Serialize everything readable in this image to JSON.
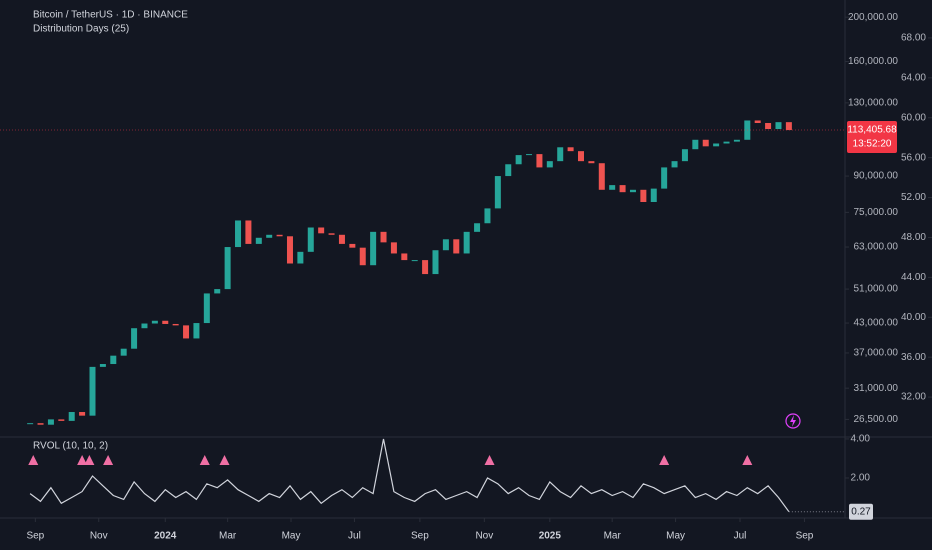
{
  "chart_data": {
    "type": "candlestick",
    "title": "Bitcoin / TetherUS · 1D · BINANCE",
    "subtitle": "Distribution Days (25)",
    "log_scale": true,
    "up_color": "#26a69a",
    "down_color": "#ef5350",
    "open": [
      25900,
      26000,
      25800,
      26500,
      26300,
      27500,
      27000,
      34500,
      35000,
      36500,
      37800,
      41900,
      42900,
      43500,
      42800,
      42500,
      39800,
      43000,
      49900,
      51000,
      63000,
      72000,
      64000,
      66000,
      67000,
      66500,
      58000,
      61500,
      69500,
      67500,
      67000,
      64000,
      62800,
      57500,
      68000,
      64500,
      61000,
      59000,
      59000,
      55000,
      62000,
      65500,
      61000,
      68000,
      71000,
      76500,
      90000,
      95500,
      100000,
      100500,
      94000,
      97000,
      104000,
      102000,
      97000,
      96000,
      84000,
      86000,
      83000,
      84000,
      79000,
      84500,
      94000,
      97000,
      103000,
      108000,
      104500,
      106000,
      107000,
      108000,
      119000,
      117500,
      114000,
      118000
    ],
    "close": [
      26000,
      25800,
      26500,
      26300,
      27500,
      27000,
      34500,
      35000,
      36500,
      37800,
      41900,
      42900,
      43500,
      42800,
      42500,
      39800,
      43000,
      49900,
      51000,
      63000,
      72000,
      64000,
      66000,
      67000,
      66500,
      58000,
      61500,
      69500,
      67500,
      67000,
      64000,
      62800,
      57500,
      68000,
      64500,
      61000,
      59000,
      59000,
      55000,
      62000,
      65500,
      61000,
      68000,
      71000,
      76500,
      90000,
      95500,
      100000,
      100500,
      94000,
      97000,
      104000,
      102000,
      97000,
      96000,
      84000,
      86000,
      83000,
      84000,
      79000,
      84500,
      94000,
      97000,
      103000,
      108000,
      104500,
      106000,
      107000,
      108000,
      119000,
      117500,
      114000,
      118000,
      113405.68
    ],
    "xlim": [
      -2.9,
      78.4
    ],
    "xticks": [
      {
        "value": 0.5,
        "label": "Sep"
      },
      {
        "value": 6.6,
        "label": "Nov"
      },
      {
        "value": 13.0,
        "label": "2024"
      },
      {
        "value": 19.0,
        "label": "Mar"
      },
      {
        "value": 25.1,
        "label": "May"
      },
      {
        "value": 31.2,
        "label": "Jul"
      },
      {
        "value": 37.5,
        "label": "Sep"
      },
      {
        "value": 43.7,
        "label": "Nov"
      },
      {
        "value": 50.0,
        "label": "2025"
      },
      {
        "value": 56.0,
        "label": "Mar"
      },
      {
        "value": 62.1,
        "label": "May"
      },
      {
        "value": 68.3,
        "label": "Jul"
      },
      {
        "value": 74.5,
        "label": "Sep"
      }
    ],
    "ylim": [
      24500,
      218000
    ],
    "yticks": [
      {
        "value": 200000,
        "label": "200,000.00"
      },
      {
        "value": 160000,
        "label": "160,000.00"
      },
      {
        "value": 130000,
        "label": "130,000.00"
      },
      {
        "value": 90000,
        "label": "90,000.00"
      },
      {
        "value": 75000,
        "label": "75,000.00"
      },
      {
        "value": 63000,
        "label": "63,000.00"
      },
      {
        "value": 51000,
        "label": "51,000.00"
      },
      {
        "value": 43000,
        "label": "43,000.00"
      },
      {
        "value": 37000,
        "label": "37,000.00"
      },
      {
        "value": 31000,
        "label": "31,000.00"
      },
      {
        "value": 26500,
        "label": "26,500.00"
      }
    ],
    "y2lim": [
      28.2,
      71.8
    ],
    "y2ticks": [
      {
        "value": 68,
        "label": "68.00"
      },
      {
        "value": 64,
        "label": "64.00"
      },
      {
        "value": 60,
        "label": "60.00"
      },
      {
        "value": 56,
        "label": "56.00"
      },
      {
        "value": 52,
        "label": "52.00"
      },
      {
        "value": 48,
        "label": "48.00"
      },
      {
        "value": 44,
        "label": "44.00"
      },
      {
        "value": 40,
        "label": "40.00"
      },
      {
        "value": 36,
        "label": "36.00"
      },
      {
        "value": 32,
        "label": "32.00"
      }
    ],
    "last_price": {
      "value": 113405.68,
      "label": "113,405.68",
      "color": "#f23645"
    },
    "countdown": "13:52:20",
    "rvol": {
      "name": "RVOL (10, 10, 2)",
      "color": "#d1d4dc",
      "values": [
        1.2,
        0.8,
        1.5,
        0.7,
        1.0,
        1.3,
        2.1,
        1.6,
        1.1,
        0.9,
        1.8,
        1.2,
        0.8,
        1.4,
        1.0,
        1.3,
        0.9,
        1.7,
        1.5,
        1.9,
        1.4,
        1.1,
        0.8,
        1.2,
        1.0,
        1.6,
        0.9,
        1.3,
        0.7,
        1.1,
        1.4,
        1.0,
        1.5,
        1.2,
        4.0,
        1.3,
        1.0,
        0.8,
        1.2,
        1.4,
        0.9,
        1.1,
        1.3,
        1.0,
        2.0,
        1.7,
        1.2,
        1.5,
        1.1,
        0.9,
        1.8,
        1.3,
        1.0,
        1.6,
        1.2,
        1.4,
        1.1,
        1.3,
        1.0,
        1.7,
        1.5,
        1.2,
        1.4,
        1.6,
        1.0,
        1.2,
        0.9,
        1.3,
        1.1,
        1.5,
        1.2,
        1.6,
        1.0,
        0.27
      ],
      "ylim": [
        0,
        4.1
      ],
      "yticks": [
        {
          "value": 4,
          "label": "4.00"
        },
        {
          "value": 2,
          "label": "2.00"
        }
      ],
      "markers": [
        0.3,
        5,
        5.7,
        7.5,
        16.8,
        18.7,
        44.2,
        61,
        69
      ],
      "marker_color": "#f06fa4"
    }
  }
}
